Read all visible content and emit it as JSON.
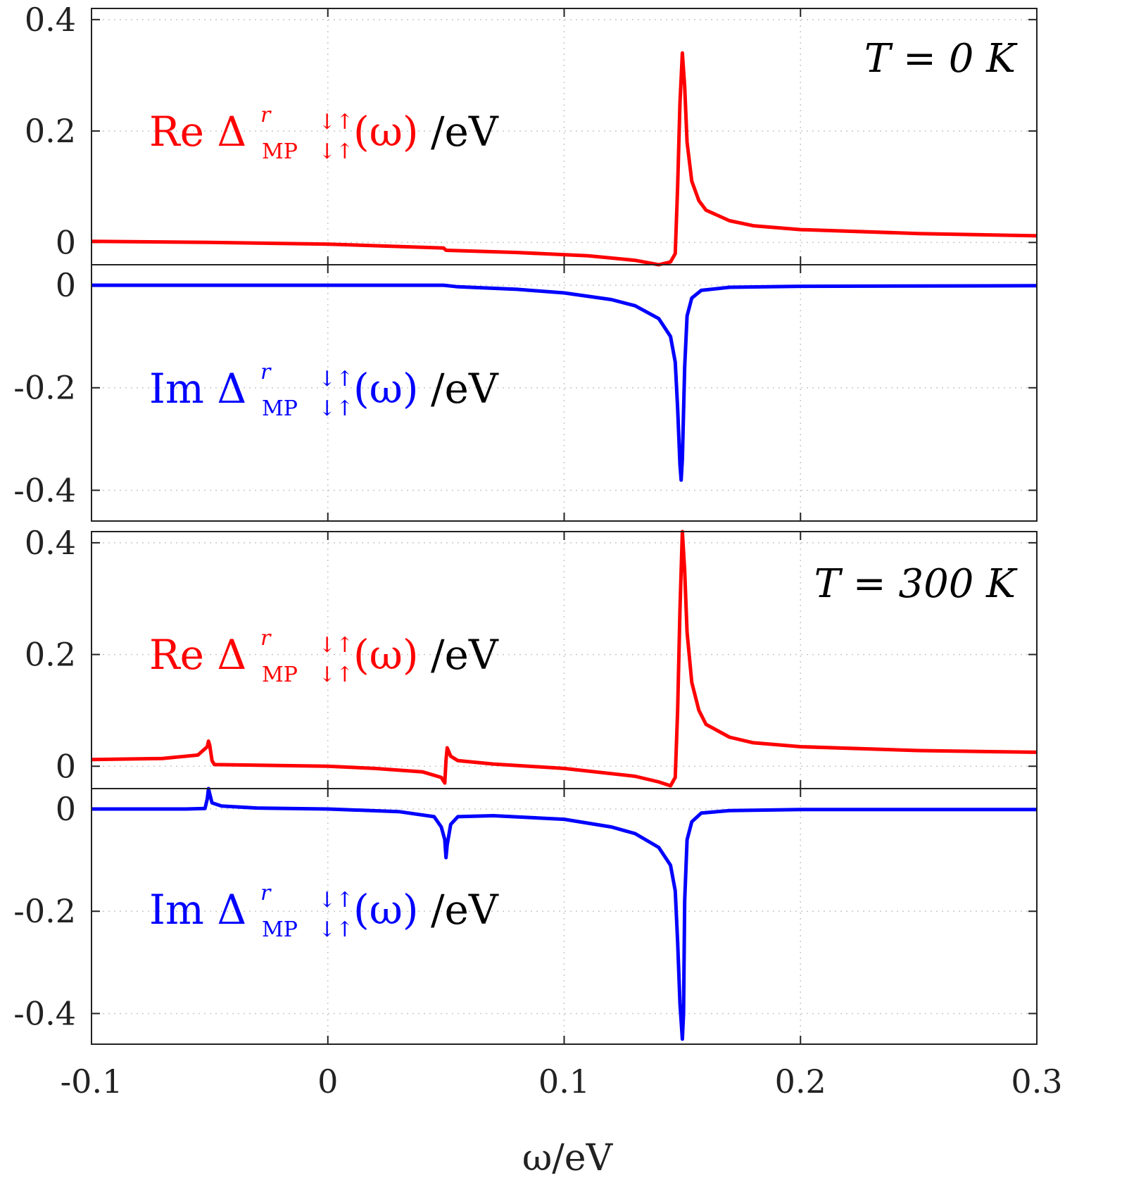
{
  "chart_data": {
    "type": "line",
    "x": {
      "label": "ω/eV",
      "range": [
        -0.1,
        0.3
      ],
      "ticks": [
        -0.1,
        0,
        0.1,
        0.2,
        0.3
      ],
      "tick_labels": [
        "-0.1",
        "0",
        "0.1",
        "0.2",
        "0.3"
      ]
    },
    "colors": {
      "re": "#ff0000",
      "im": "#0000ff",
      "unit": "#000000"
    },
    "panels": [
      {
        "id": "T0-re",
        "legend": {
          "prefix": "Re Δ",
          "sup": "r",
          "sub": "MP",
          "spin_top": "↓↑",
          "spin_bottom": "↓↑",
          "arg": "(ω)",
          "unit": "/eV",
          "color": "re"
        },
        "temperature_label": "T = 0 K",
        "ylim": [
          -0.04,
          0.42
        ],
        "yticks": [
          0,
          0.2,
          0.4
        ],
        "ytick_labels": [
          "0",
          "0.2",
          "0.4"
        ],
        "series_points": [
          [
            -0.1,
            0.002
          ],
          [
            -0.05,
            0.0
          ],
          [
            0.0,
            -0.003
          ],
          [
            0.049,
            -0.01
          ],
          [
            0.05,
            -0.014
          ],
          [
            0.08,
            -0.018
          ],
          [
            0.11,
            -0.024
          ],
          [
            0.13,
            -0.032
          ],
          [
            0.14,
            -0.04
          ],
          [
            0.145,
            -0.035
          ],
          [
            0.147,
            -0.02
          ],
          [
            0.148,
            0.1
          ],
          [
            0.149,
            0.25
          ],
          [
            0.15,
            0.34
          ],
          [
            0.151,
            0.28
          ],
          [
            0.152,
            0.18
          ],
          [
            0.154,
            0.11
          ],
          [
            0.157,
            0.075
          ],
          [
            0.16,
            0.058
          ],
          [
            0.17,
            0.039
          ],
          [
            0.18,
            0.03
          ],
          [
            0.2,
            0.023
          ],
          [
            0.25,
            0.016
          ],
          [
            0.3,
            0.012
          ]
        ]
      },
      {
        "id": "T0-im",
        "legend": {
          "prefix": "Im Δ",
          "sup": "r",
          "sub": "MP",
          "spin_top": "↓↑",
          "spin_bottom": "↓↑",
          "arg": "(ω)",
          "unit": "/eV",
          "color": "im"
        },
        "ylim": [
          -0.46,
          0.04
        ],
        "yticks": [
          -0.4,
          -0.2,
          0
        ],
        "ytick_labels": [
          "-0.4",
          "-0.2",
          "0"
        ],
        "series_points": [
          [
            -0.1,
            0.0
          ],
          [
            0.0,
            0.0
          ],
          [
            0.049,
            0.0
          ],
          [
            0.055,
            -0.003
          ],
          [
            0.08,
            -0.008
          ],
          [
            0.1,
            -0.015
          ],
          [
            0.12,
            -0.028
          ],
          [
            0.13,
            -0.04
          ],
          [
            0.14,
            -0.065
          ],
          [
            0.145,
            -0.1
          ],
          [
            0.147,
            -0.15
          ],
          [
            0.148,
            -0.24
          ],
          [
            0.149,
            -0.35
          ],
          [
            0.1495,
            -0.38
          ],
          [
            0.15,
            -0.34
          ],
          [
            0.151,
            -0.16
          ],
          [
            0.152,
            -0.06
          ],
          [
            0.154,
            -0.025
          ],
          [
            0.158,
            -0.01
          ],
          [
            0.17,
            -0.004
          ],
          [
            0.2,
            -0.002
          ],
          [
            0.3,
            -0.001
          ]
        ]
      },
      {
        "id": "T300-re",
        "legend": {
          "prefix": "Re Δ",
          "sup": "r",
          "sub": "MP",
          "spin_top": "↓↑",
          "spin_bottom": "↓↑",
          "arg": "(ω)",
          "unit": "/eV",
          "color": "re"
        },
        "temperature_label": "T = 300 K",
        "ylim": [
          -0.04,
          0.42
        ],
        "yticks": [
          0,
          0.2,
          0.4
        ],
        "ytick_labels": [
          "0",
          "0.2",
          "0.4"
        ],
        "series_points": [
          [
            -0.1,
            0.012
          ],
          [
            -0.07,
            0.014
          ],
          [
            -0.055,
            0.02
          ],
          [
            -0.051,
            0.035
          ],
          [
            -0.0505,
            0.045
          ],
          [
            -0.05,
            0.038
          ],
          [
            -0.049,
            0.01
          ],
          [
            -0.048,
            0.003
          ],
          [
            -0.03,
            0.002
          ],
          [
            0.0,
            0.0
          ],
          [
            0.02,
            -0.004
          ],
          [
            0.04,
            -0.01
          ],
          [
            0.048,
            -0.02
          ],
          [
            0.0495,
            -0.03
          ],
          [
            0.05,
            0.01
          ],
          [
            0.0505,
            0.033
          ],
          [
            0.052,
            0.018
          ],
          [
            0.055,
            0.01
          ],
          [
            0.07,
            0.004
          ],
          [
            0.1,
            -0.004
          ],
          [
            0.13,
            -0.018
          ],
          [
            0.14,
            -0.028
          ],
          [
            0.145,
            -0.035
          ],
          [
            0.147,
            -0.02
          ],
          [
            0.148,
            0.1
          ],
          [
            0.149,
            0.28
          ],
          [
            0.15,
            0.42
          ],
          [
            0.151,
            0.35
          ],
          [
            0.152,
            0.24
          ],
          [
            0.154,
            0.15
          ],
          [
            0.157,
            0.1
          ],
          [
            0.16,
            0.075
          ],
          [
            0.17,
            0.052
          ],
          [
            0.18,
            0.042
          ],
          [
            0.2,
            0.035
          ],
          [
            0.25,
            0.028
          ],
          [
            0.3,
            0.025
          ]
        ]
      },
      {
        "id": "T300-im",
        "legend": {
          "prefix": "Im Δ",
          "sup": "r",
          "sub": "MP",
          "spin_top": "↓↑",
          "spin_bottom": "↓↑",
          "arg": "(ω)",
          "unit": "/eV",
          "color": "im"
        },
        "ylim": [
          -0.46,
          0.04
        ],
        "yticks": [
          -0.4,
          -0.2,
          0
        ],
        "ytick_labels": [
          "-0.4",
          "-0.2",
          "0"
        ],
        "series_points": [
          [
            -0.1,
            0.0
          ],
          [
            -0.06,
            0.0
          ],
          [
            -0.052,
            0.001
          ],
          [
            -0.051,
            0.02
          ],
          [
            -0.0505,
            0.04
          ],
          [
            -0.05,
            0.03
          ],
          [
            -0.049,
            0.012
          ],
          [
            -0.045,
            0.006
          ],
          [
            -0.03,
            0.002
          ],
          [
            0.0,
            0.0
          ],
          [
            0.03,
            -0.005
          ],
          [
            0.045,
            -0.015
          ],
          [
            0.048,
            -0.035
          ],
          [
            0.0495,
            -0.06
          ],
          [
            0.05,
            -0.095
          ],
          [
            0.0505,
            -0.07
          ],
          [
            0.052,
            -0.03
          ],
          [
            0.055,
            -0.015
          ],
          [
            0.07,
            -0.013
          ],
          [
            0.1,
            -0.02
          ],
          [
            0.12,
            -0.035
          ],
          [
            0.13,
            -0.048
          ],
          [
            0.14,
            -0.075
          ],
          [
            0.145,
            -0.11
          ],
          [
            0.147,
            -0.16
          ],
          [
            0.148,
            -0.26
          ],
          [
            0.149,
            -0.38
          ],
          [
            0.15,
            -0.45
          ],
          [
            0.1505,
            -0.4
          ],
          [
            0.151,
            -0.18
          ],
          [
            0.152,
            -0.06
          ],
          [
            0.154,
            -0.025
          ],
          [
            0.158,
            -0.008
          ],
          [
            0.17,
            -0.003
          ],
          [
            0.2,
            -0.001
          ],
          [
            0.3,
            -0.001
          ]
        ]
      }
    ]
  }
}
